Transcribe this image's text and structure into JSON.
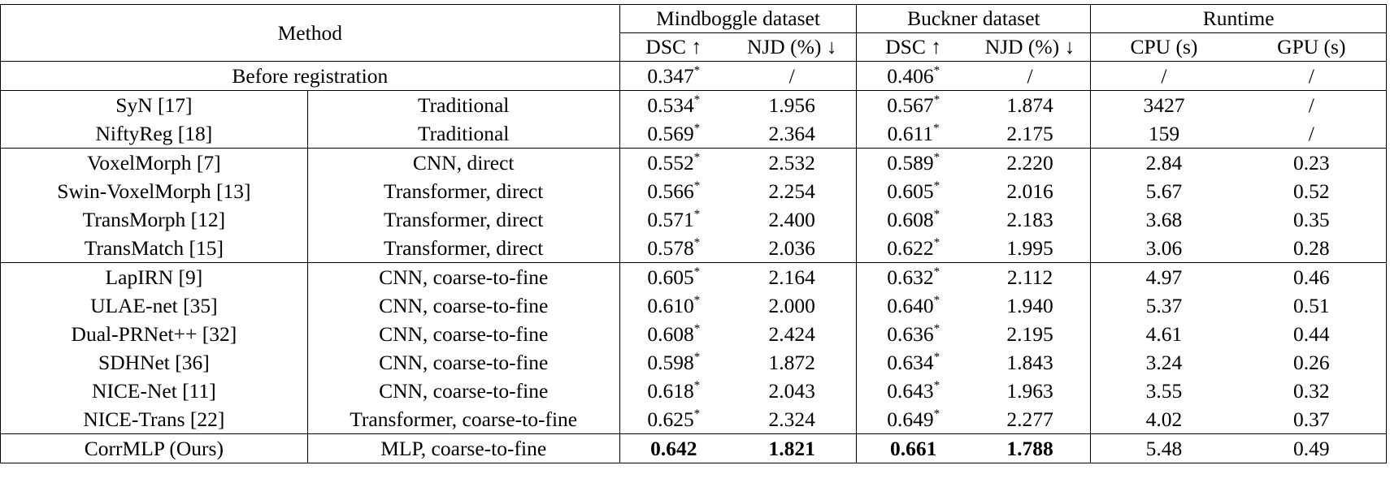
{
  "header": {
    "method": "Method",
    "group1": "Mindboggle dataset",
    "group2": "Buckner dataset",
    "group3": "Runtime",
    "sub": [
      "DSC ↑",
      "NJD (%) ↓",
      "DSC ↑",
      "NJD (%) ↓",
      "CPU (s)",
      "GPU (s)"
    ]
  },
  "before": {
    "label": "Before registration",
    "m_dsc": "0.347",
    "m_njd": "/",
    "b_dsc": "0.406",
    "b_njd": "/",
    "cpu": "/",
    "gpu": "/"
  },
  "groups": [
    [
      {
        "method": "SyN [17]",
        "type": "Traditional",
        "m_dsc": "0.534",
        "m_njd": "1.956",
        "b_dsc": "0.567",
        "b_njd": "1.874",
        "cpu": "3427",
        "gpu": "/"
      },
      {
        "method": "NiftyReg [18]",
        "type": "Traditional",
        "m_dsc": "0.569",
        "m_njd": "2.364",
        "b_dsc": "0.611",
        "b_njd": "2.175",
        "cpu": "159",
        "gpu": "/"
      }
    ],
    [
      {
        "method": "VoxelMorph [7]",
        "type": "CNN, direct",
        "m_dsc": "0.552",
        "m_njd": "2.532",
        "b_dsc": "0.589",
        "b_njd": "2.220",
        "cpu": "2.84",
        "gpu": "0.23"
      },
      {
        "method": "Swin-VoxelMorph [13]",
        "type": "Transformer, direct",
        "m_dsc": "0.566",
        "m_njd": "2.254",
        "b_dsc": "0.605",
        "b_njd": "2.016",
        "cpu": "5.67",
        "gpu": "0.52"
      },
      {
        "method": "TransMorph [12]",
        "type": "Transformer, direct",
        "m_dsc": "0.571",
        "m_njd": "2.400",
        "b_dsc": "0.608",
        "b_njd": "2.183",
        "cpu": "3.68",
        "gpu": "0.35"
      },
      {
        "method": "TransMatch [15]",
        "type": "Transformer, direct",
        "m_dsc": "0.578",
        "m_njd": "2.036",
        "b_dsc": "0.622",
        "b_njd": "1.995",
        "cpu": "3.06",
        "gpu": "0.28"
      }
    ],
    [
      {
        "method": "LapIRN [9]",
        "type": "CNN, coarse-to-fine",
        "m_dsc": "0.605",
        "m_njd": "2.164",
        "b_dsc": "0.632",
        "b_njd": "2.112",
        "cpu": "4.97",
        "gpu": "0.46"
      },
      {
        "method": "ULAE-net [35]",
        "type": "CNN, coarse-to-fine",
        "m_dsc": "0.610",
        "m_njd": "2.000",
        "b_dsc": "0.640",
        "b_njd": "1.940",
        "cpu": "5.37",
        "gpu": "0.51"
      },
      {
        "method": "Dual-PRNet++ [32]",
        "type": "CNN, coarse-to-fine",
        "m_dsc": "0.608",
        "m_njd": "2.424",
        "b_dsc": "0.636",
        "b_njd": "2.195",
        "cpu": "4.61",
        "gpu": "0.44"
      },
      {
        "method": "SDHNet [36]",
        "type": "CNN, coarse-to-fine",
        "m_dsc": "0.598",
        "m_njd": "1.872",
        "b_dsc": "0.634",
        "b_njd": "1.843",
        "cpu": "3.24",
        "gpu": "0.26"
      },
      {
        "method": "NICE-Net [11]",
        "type": "CNN, coarse-to-fine",
        "m_dsc": "0.618",
        "m_njd": "2.043",
        "b_dsc": "0.643",
        "b_njd": "1.963",
        "cpu": "3.55",
        "gpu": "0.32"
      },
      {
        "method": "NICE-Trans [22]",
        "type": "Transformer, coarse-to-fine",
        "m_dsc": "0.625",
        "m_njd": "2.324",
        "b_dsc": "0.649",
        "b_njd": "2.277",
        "cpu": "4.02",
        "gpu": "0.37"
      }
    ]
  ],
  "ours": {
    "method": "CorrMLP (Ours)",
    "type": "MLP, coarse-to-fine",
    "m_dsc": "0.642",
    "m_njd": "1.821",
    "b_dsc": "0.661",
    "b_njd": "1.788",
    "cpu": "5.48",
    "gpu": "0.49"
  },
  "significance_mark": "*"
}
